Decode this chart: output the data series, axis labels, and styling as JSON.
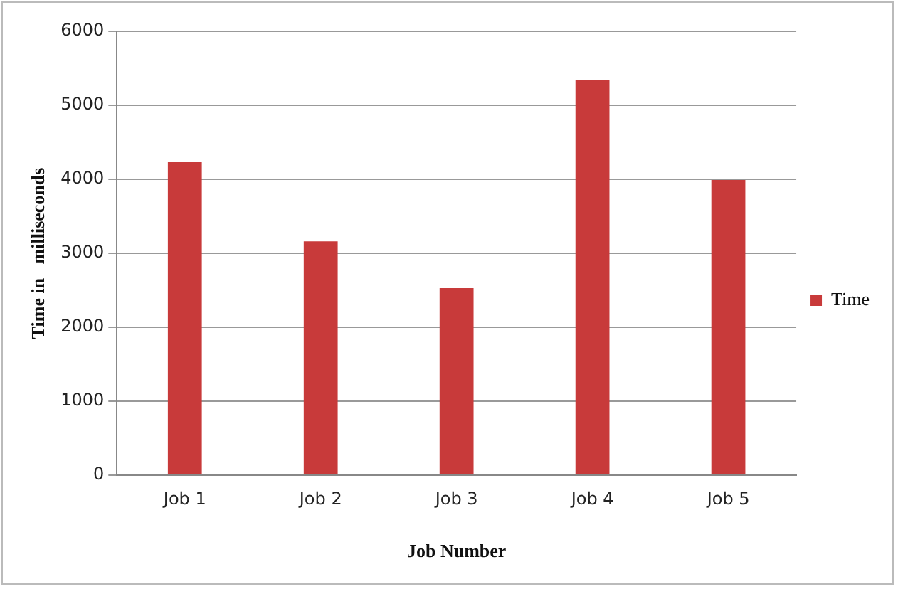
{
  "chart_data": {
    "type": "bar",
    "xlabel": "Job Number",
    "ylabel": "Time in   milliseconds",
    "categories": [
      "Job 1",
      "Job 2",
      "Job 3",
      "Job 4",
      "Job 5"
    ],
    "series": [
      {
        "name": "Time",
        "color": "#c83a3a",
        "values": [
          4230,
          3160,
          2530,
          5340,
          3990
        ]
      }
    ],
    "ylim": [
      0,
      6000
    ],
    "yticks": [
      0,
      1000,
      2000,
      3000,
      4000,
      5000,
      6000
    ],
    "grid": "y",
    "legend": "right"
  }
}
